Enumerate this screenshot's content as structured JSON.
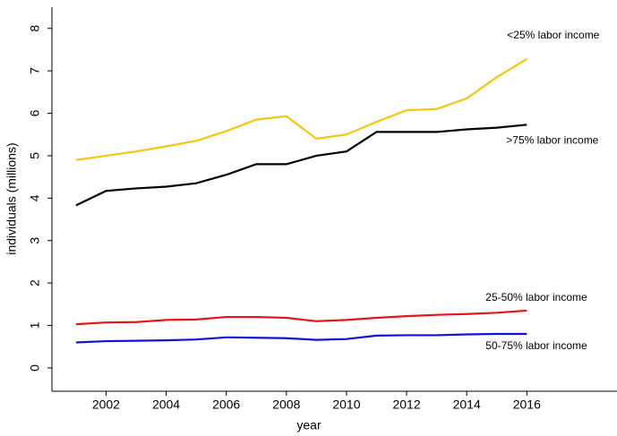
{
  "chart_data": {
    "type": "line",
    "x_label": "year",
    "y_label": "individuals (millions)",
    "x": [
      2001,
      2002,
      2003,
      2004,
      2005,
      2006,
      2007,
      2008,
      2009,
      2010,
      2011,
      2012,
      2013,
      2014,
      2015,
      2016
    ],
    "series": [
      {
        "name": "<25% labor income",
        "color": "#f2c80f",
        "values": [
          4.9,
          5.0,
          5.1,
          5.22,
          5.35,
          5.58,
          5.85,
          5.93,
          5.4,
          5.5,
          5.8,
          6.07,
          6.1,
          6.35,
          6.85,
          7.28
        ]
      },
      {
        "name": ">75% labor income",
        "color": "#000000",
        "values": [
          3.83,
          4.17,
          4.23,
          4.27,
          4.35,
          4.55,
          4.8,
          4.8,
          5.0,
          5.1,
          5.56,
          5.56,
          5.56,
          5.62,
          5.66,
          5.73
        ]
      },
      {
        "name": "25-50% labor income",
        "color": "#e8141a",
        "values": [
          1.03,
          1.07,
          1.08,
          1.13,
          1.14,
          1.2,
          1.2,
          1.18,
          1.1,
          1.13,
          1.18,
          1.22,
          1.25,
          1.27,
          1.3,
          1.35
        ]
      },
      {
        "name": "50-75% labor income",
        "color": "#1010e0",
        "values": [
          0.6,
          0.63,
          0.64,
          0.65,
          0.67,
          0.72,
          0.71,
          0.7,
          0.66,
          0.68,
          0.76,
          0.77,
          0.77,
          0.79,
          0.8,
          0.8
        ]
      }
    ],
    "xlim": [
      2000.2,
      2019
    ],
    "xticks": [
      2002,
      2004,
      2006,
      2008,
      2010,
      2012,
      2014,
      2016
    ],
    "ylim": [
      -0.55,
      8.5
    ],
    "yticks": [
      0,
      1,
      2,
      3,
      4,
      5,
      6,
      7,
      8
    ]
  }
}
